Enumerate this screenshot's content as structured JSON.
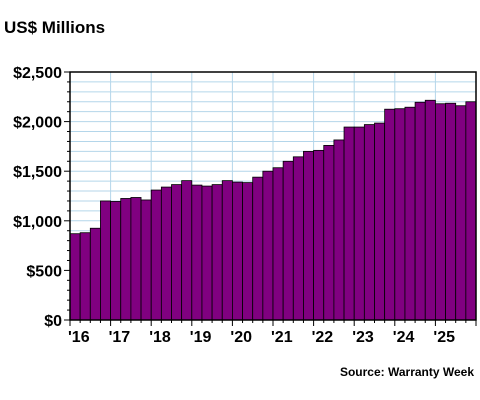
{
  "title": "US$ Millions",
  "source": "Source: Warranty Week",
  "chart_data": {
    "type": "bar",
    "title": "US$ Millions",
    "xlabel": "",
    "ylabel": "",
    "ylim": [
      0,
      2500
    ],
    "yticks": [
      0,
      500,
      1000,
      1500,
      2000,
      2500
    ],
    "ytick_labels": [
      "$0",
      "$500",
      "$1,000",
      "$1,500",
      "$2,000",
      "$2,500"
    ],
    "xtick_labels": [
      "'16",
      "'17",
      "'18",
      "'19",
      "'20",
      "'21",
      "'22",
      "'23",
      "'24",
      "'25"
    ],
    "periods_per_year": 4,
    "first_year": 2016,
    "grid": true,
    "colors": {
      "bar": "#800080",
      "grid": "#b4d6ea",
      "axis": "#000000"
    },
    "categories": [
      "Q1 2016",
      "Q2 2016",
      "Q3 2016",
      "Q4 2016",
      "Q1 2017",
      "Q2 2017",
      "Q3 2017",
      "Q4 2017",
      "Q1 2018",
      "Q2 2018",
      "Q3 2018",
      "Q4 2018",
      "Q1 2019",
      "Q2 2019",
      "Q3 2019",
      "Q4 2019",
      "Q1 2020",
      "Q2 2020",
      "Q3 2020",
      "Q4 2020",
      "Q1 2021",
      "Q2 2021",
      "Q3 2021",
      "Q4 2021",
      "Q1 2022",
      "Q2 2022",
      "Q3 2022",
      "Q4 2022",
      "Q1 2023",
      "Q2 2023",
      "Q3 2023",
      "Q4 2023",
      "Q1 2024",
      "Q2 2024",
      "Q3 2024",
      "Q4 2024",
      "Q1 2025",
      "Q2 2025",
      "Q3 2025",
      "Q4 2025"
    ],
    "values": [
      870,
      880,
      925,
      1200,
      1195,
      1225,
      1235,
      1210,
      1310,
      1340,
      1365,
      1405,
      1360,
      1350,
      1365,
      1405,
      1390,
      1385,
      1440,
      1500,
      1535,
      1600,
      1645,
      1700,
      1710,
      1760,
      1815,
      1945,
      1945,
      1970,
      1985,
      2125,
      2130,
      2145,
      2195,
      2215,
      2180,
      2185,
      2160,
      2200
    ]
  }
}
